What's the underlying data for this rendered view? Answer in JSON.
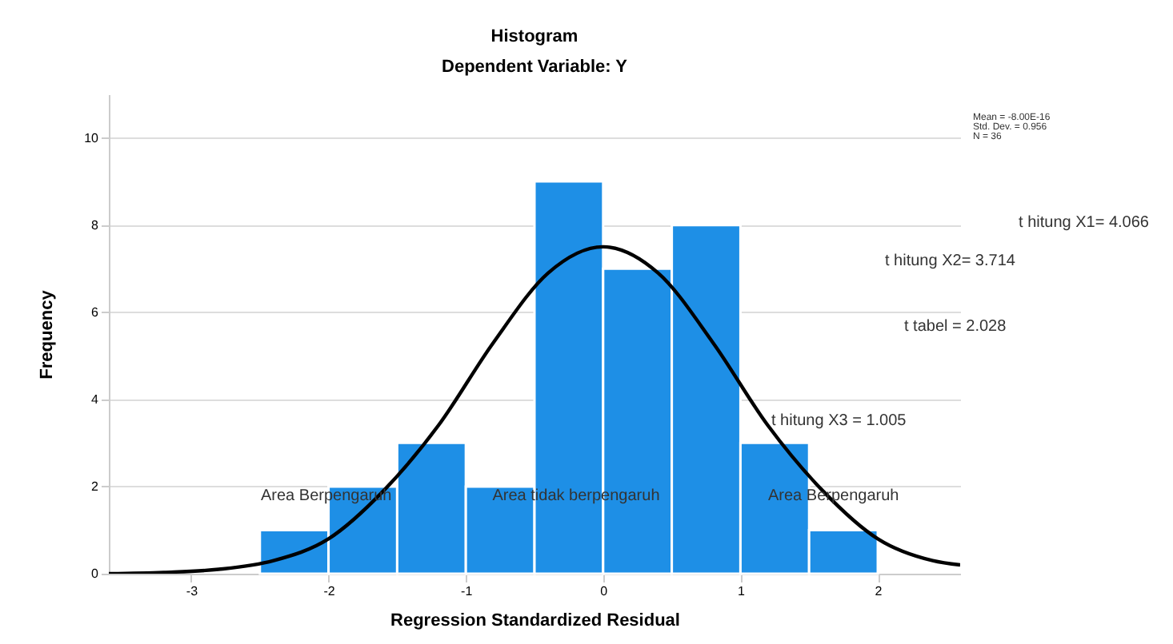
{
  "chart_data": {
    "type": "histogram",
    "title": "Histogram",
    "subtitle": "Dependent Variable: Y",
    "xlabel": "Regression Standardized Residual",
    "ylabel": "Frequency",
    "series": [
      {
        "bins": [
          -2.5,
          -2,
          -1.5,
          -1,
          -0.5,
          0,
          0.5,
          1,
          1.5,
          2
        ],
        "values": [
          1,
          2,
          3,
          2,
          9,
          7,
          8,
          3,
          1
        ],
        "color": "#1e8fe6"
      },
      {
        "type": "line",
        "x": [
          -3.6,
          -3.2,
          -2.8,
          -2.4,
          -2.0,
          -1.6,
          -1.2,
          -0.8,
          -0.4,
          0,
          0.4,
          0.8,
          1.2,
          1.6,
          2.0,
          2.4,
          2.6
        ],
        "values": [
          0.0,
          0.03,
          0.1,
          0.3,
          0.8,
          1.9,
          3.4,
          5.3,
          6.9,
          7.5,
          6.9,
          5.3,
          3.4,
          1.9,
          0.8,
          0.3,
          0.2
        ],
        "color": "#000000"
      }
    ],
    "xlim": [
      -3.6,
      2.6
    ],
    "xticks": [
      -3,
      -2,
      -1,
      0,
      1,
      2
    ],
    "ylim": [
      0,
      11
    ],
    "yticks": [
      0,
      2,
      4,
      6,
      8,
      10
    ],
    "grid": "y",
    "annotations": [
      "Mean = -8.00E-16",
      "Std. Dev. = 0.956",
      "N = 36",
      "t hitung X1= 4.066",
      "t hitung X2= 3.714",
      "t tabel = 2.028",
      "t hitung X3 = 1.005",
      "Area Berpengaruh",
      "Area tidak berpengaruh",
      "Area Berpengaruh"
    ]
  }
}
